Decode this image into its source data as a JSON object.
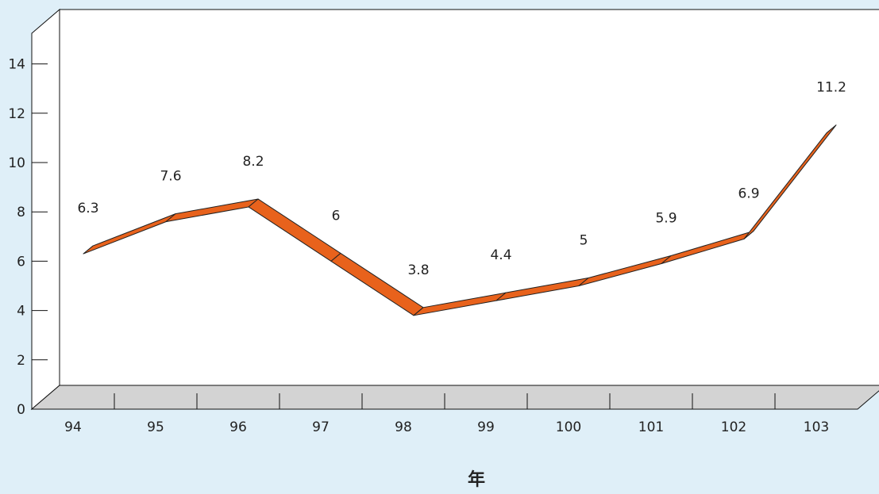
{
  "chart_data": {
    "type": "line",
    "style": "3d-ribbon",
    "title": "",
    "xlabel": "年",
    "ylabel": "",
    "categories": [
      "94",
      "95",
      "96",
      "97",
      "98",
      "99",
      "100",
      "101",
      "102",
      "103"
    ],
    "series": [
      {
        "values": [
          6.3,
          7.6,
          8.2,
          6,
          3.8,
          4.4,
          5,
          5.9,
          6.9,
          11.2
        ],
        "color": "#e8621c"
      }
    ],
    "data_labels": [
      "6.3",
      "7.6",
      "8.2",
      "6",
      "3.8",
      "4.4",
      "5",
      "5.9",
      "6.9",
      "11.2"
    ],
    "ylim": [
      0,
      15
    ],
    "yticks": [
      "0",
      "2",
      "4",
      "6",
      "8",
      "10",
      "12",
      "14"
    ],
    "grid": false,
    "legend": "none",
    "colors": {
      "background": "#dfeff8",
      "plot": "#ffffff",
      "floor": "#d3d3d3",
      "line": "#e8621c"
    }
  }
}
